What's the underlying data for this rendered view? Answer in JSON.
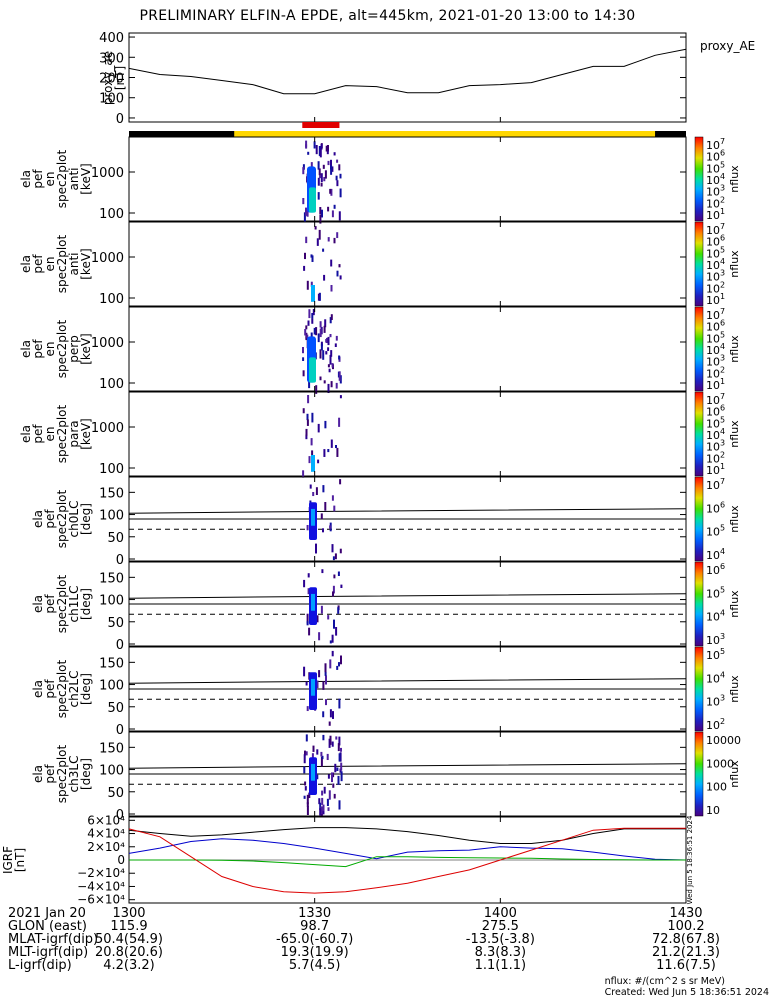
{
  "title": "PRELIMINARY ELFIN-A EPDE, alt=445km, 2021-01-20 13:00 to 14:30",
  "colors": {
    "frame": "#000000",
    "bar_dark": "#000000",
    "bar_science": "#ffd700",
    "bar_marker": "#e00000",
    "igrf_x": "#000000",
    "igrf_y": "#0000cc",
    "igrf_z": "#00aa00",
    "igrf_r": "#dd0000"
  },
  "chart_data": [
    {
      "id": "proxy_ae",
      "type": "line",
      "ylabel": [
        "proxy_ae",
        "[nT]"
      ],
      "side_label": "proxy_AE",
      "ylim": [
        -20,
        420
      ],
      "yticks": [
        0,
        100,
        200,
        300,
        400
      ],
      "x": [
        0,
        5,
        10,
        15,
        20,
        25,
        30,
        35,
        40,
        45,
        50,
        55,
        60,
        65,
        70,
        75,
        80,
        85,
        90
      ],
      "values": [
        245,
        215,
        205,
        185,
        165,
        120,
        120,
        160,
        155,
        125,
        125,
        160,
        165,
        175,
        215,
        255,
        255,
        310,
        340
      ]
    },
    {
      "id": "spectra",
      "type": "heatmap",
      "panels": [
        {
          "ylabel": [
            "ela",
            "pef",
            "en",
            "spec2plot",
            "anti",
            "[keV]"
          ],
          "cbar_ticks": [
            "10",
            "10",
            "10",
            "10",
            "10",
            "10",
            "10"
          ],
          "cbar_exp": [
            "7",
            "6",
            "5",
            "4",
            "3",
            "2",
            "1"
          ],
          "cbar_label": "nflux",
          "yticks": [
            "1000",
            "100"
          ],
          "density": "high"
        },
        {
          "ylabel": [
            "ela",
            "pef",
            "en",
            "spec2plot",
            "anti",
            "[keV]"
          ],
          "cbar_ticks": [
            "10",
            "10",
            "10",
            "10",
            "10",
            "10",
            "10"
          ],
          "cbar_exp": [
            "7",
            "6",
            "5",
            "4",
            "3",
            "2",
            "1"
          ],
          "cbar_label": "nflux",
          "yticks": [
            "1000",
            "100"
          ],
          "density": "low"
        },
        {
          "ylabel": [
            "ela",
            "pef",
            "en",
            "spec2plot",
            "perp",
            "[keV]"
          ],
          "cbar_ticks": [
            "10",
            "10",
            "10",
            "10",
            "10",
            "10",
            "10"
          ],
          "cbar_exp": [
            "7",
            "6",
            "5",
            "4",
            "3",
            "2",
            "1"
          ],
          "cbar_label": "nflux",
          "yticks": [
            "1000",
            "100"
          ],
          "density": "high"
        },
        {
          "ylabel": [
            "ela",
            "pef",
            "en",
            "spec2plot",
            "para",
            "[keV]"
          ],
          "cbar_ticks": [
            "10",
            "10",
            "10",
            "10",
            "10",
            "10",
            "10"
          ],
          "cbar_exp": [
            "7",
            "6",
            "5",
            "4",
            "3",
            "2",
            "1"
          ],
          "cbar_label": "nflux",
          "yticks": [
            "1000",
            "100"
          ],
          "density": "low"
        }
      ]
    },
    {
      "id": "pitch_angle",
      "type": "heatmap",
      "panels": [
        {
          "ylabel": [
            "ela",
            "pef",
            "spec2plot",
            "ch0LC",
            "[deg]"
          ],
          "cbar_ticks": [
            "10",
            "10",
            "10",
            "10"
          ],
          "cbar_exp": [
            "7",
            "6",
            "5",
            "4"
          ],
          "cbar_label": "nflux",
          "yticks": [
            "150",
            "100",
            "50",
            "0"
          ]
        },
        {
          "ylabel": [
            "ela",
            "pef",
            "spec2plot",
            "ch1LC",
            "[deg]"
          ],
          "cbar_ticks": [
            "10",
            "10",
            "10",
            "10"
          ],
          "cbar_exp": [
            "6",
            "5",
            "4",
            "3"
          ],
          "cbar_label": "nflux",
          "yticks": [
            "150",
            "100",
            "50",
            "0"
          ]
        },
        {
          "ylabel": [
            "ela",
            "pef",
            "spec2plot",
            "ch2LC",
            "[deg]"
          ],
          "cbar_ticks": [
            "10",
            "10",
            "10",
            "10"
          ],
          "cbar_exp": [
            "5",
            "4",
            "3",
            "2"
          ],
          "cbar_label": "nflux",
          "yticks": [
            "150",
            "100",
            "50",
            "0"
          ]
        },
        {
          "ylabel": [
            "ela",
            "pef",
            "spec2plot",
            "ch3LC",
            "[deg]"
          ],
          "cbar_ticks": [
            "10000",
            "1000",
            "100",
            "10"
          ],
          "cbar_exp": [
            "",
            "",
            "",
            ""
          ],
          "cbar_label": "nflux",
          "yticks": [
            "150",
            "100",
            "50",
            "0"
          ]
        }
      ]
    },
    {
      "id": "igrf",
      "type": "line",
      "ylabel": [
        "IGRF",
        "[nT]"
      ],
      "ylim": [
        -65000,
        65000
      ],
      "yticks": [
        "6×10⁴",
        "4×10⁴",
        "2×10⁴",
        "0",
        "−2×10⁴",
        "−4×10⁴",
        "−6×10⁴"
      ],
      "x": [
        0,
        5,
        10,
        15,
        20,
        25,
        30,
        35,
        40,
        45,
        50,
        55,
        60,
        65,
        70,
        75,
        80,
        85,
        90
      ],
      "series": [
        {
          "values": [
            45000,
            40000,
            36000,
            38000,
            42000,
            46000,
            49000,
            49000,
            47000,
            43000,
            37000,
            30000,
            25000,
            25000,
            30000,
            40000,
            47000,
            47000,
            47000
          ]
        },
        {
          "values": [
            10000,
            18000,
            28000,
            32000,
            30000,
            25000,
            18000,
            10000,
            2000,
            12000,
            14000,
            15000,
            20000,
            18000,
            17000,
            12000,
            6000,
            1000,
            0
          ]
        },
        {
          "values": [
            0,
            0,
            0,
            -500,
            -1500,
            -4000,
            -7000,
            -10000,
            5000,
            5000,
            4000,
            3500,
            3000,
            2500,
            1500,
            800,
            300,
            0,
            0
          ]
        },
        {
          "values": [
            47000,
            35000,
            5000,
            -25000,
            -40000,
            -48000,
            -50000,
            -48000,
            -42000,
            -35000,
            -25000,
            -15000,
            0,
            15000,
            30000,
            45000,
            48000,
            48000,
            48000
          ]
        }
      ]
    }
  ],
  "time_axis": {
    "labels": [
      "1300",
      "1330",
      "1400",
      "1430"
    ],
    "rows": [
      {
        "label": "2021 Jan 20",
        "values": [
          "1300",
          "1330",
          "1400",
          "1430"
        ]
      },
      {
        "label": "GLON (east)",
        "values": [
          "115.9",
          "98.7",
          "275.5",
          "100.2"
        ]
      },
      {
        "label": "MLAT-igrf(dip)",
        "values": [
          "50.4(54.9)",
          "-65.0(-60.7)",
          "-13.5(-3.8)",
          "72.8(67.8)"
        ]
      },
      {
        "label": "MLT-igrf(dip)",
        "values": [
          "20.8(20.6)",
          "19.3(19.9)",
          "8.3(8.3)",
          "21.2(21.3)"
        ]
      },
      {
        "label": "L-igrf(dip)",
        "values": [
          "4.2(3.2)",
          "5.7(4.5)",
          "1.1(1.1)",
          "11.6(7.5)"
        ]
      }
    ]
  },
  "footer": {
    "units": "nflux: #/(cm^2 s sr MeV)",
    "created": "Created: Wed Jun  5 18:36:51 2024",
    "side_stamp": "Wed Jun  5 18:36:51 2024"
  }
}
